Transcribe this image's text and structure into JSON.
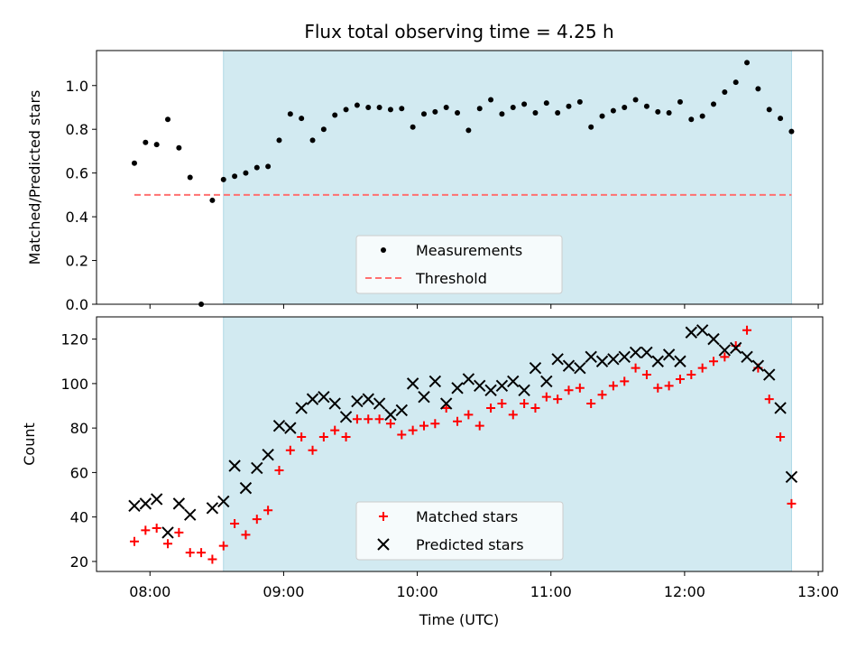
{
  "chart_data": {
    "title": "Flux total observing time = 4.25 h",
    "xlabel": "Time (UTC)",
    "xlim": [
      "07:36",
      "13:02"
    ],
    "x_ticks": [
      "08:00",
      "09:00",
      "10:00",
      "11:00",
      "12:00",
      "13:00"
    ],
    "shaded_interval": [
      "08:33",
      "12:48"
    ],
    "colors": {
      "shade": "#add8e6",
      "threshold": "#ff7070",
      "matched": "#ff0000",
      "predicted": "#000000",
      "measurements": "#000000"
    },
    "panels": [
      {
        "type": "scatter",
        "ylabel": "Matched/Predicted stars",
        "ylim": [
          0,
          1.16
        ],
        "y_ticks": [
          "0.0",
          "0.2",
          "0.4",
          "0.6",
          "0.8",
          "1.0"
        ],
        "legend": {
          "position": "lower center",
          "entries": [
            "Measurements",
            "Threshold"
          ]
        },
        "threshold": {
          "name": "Threshold",
          "value": 0.5,
          "x_range": [
            "07:53",
            "12:48"
          ]
        },
        "series": [
          {
            "name": "Measurements",
            "points": [
              [
                "07:53",
                0.645
              ],
              [
                "07:58",
                0.74
              ],
              [
                "08:03",
                0.73
              ],
              [
                "08:08",
                0.845
              ],
              [
                "08:13",
                0.715
              ],
              [
                "08:18",
                0.58
              ],
              [
                "08:23",
                0.0
              ],
              [
                "08:28",
                0.475
              ],
              [
                "08:33",
                0.57
              ],
              [
                "08:38",
                0.585
              ],
              [
                "08:43",
                0.6
              ],
              [
                "08:48",
                0.625
              ],
              [
                "08:53",
                0.63
              ],
              [
                "08:58",
                0.75
              ],
              [
                "09:03",
                0.87
              ],
              [
                "09:08",
                0.85
              ],
              [
                "09:13",
                0.75
              ],
              [
                "09:18",
                0.8
              ],
              [
                "09:23",
                0.865
              ],
              [
                "09:28",
                0.89
              ],
              [
                "09:33",
                0.91
              ],
              [
                "09:38",
                0.9
              ],
              [
                "09:43",
                0.9
              ],
              [
                "09:48",
                0.89
              ],
              [
                "09:53",
                0.895
              ],
              [
                "09:58",
                0.81
              ],
              [
                "10:03",
                0.87
              ],
              [
                "10:08",
                0.88
              ],
              [
                "10:13",
                0.9
              ],
              [
                "10:18",
                0.875
              ],
              [
                "10:23",
                0.795
              ],
              [
                "10:28",
                0.895
              ],
              [
                "10:33",
                0.935
              ],
              [
                "10:38",
                0.87
              ],
              [
                "10:43",
                0.9
              ],
              [
                "10:48",
                0.915
              ],
              [
                "10:53",
                0.875
              ],
              [
                "10:58",
                0.92
              ],
              [
                "11:03",
                0.875
              ],
              [
                "11:08",
                0.905
              ],
              [
                "11:13",
                0.925
              ],
              [
                "11:18",
                0.81
              ],
              [
                "11:23",
                0.86
              ],
              [
                "11:28",
                0.885
              ],
              [
                "11:33",
                0.9
              ],
              [
                "11:38",
                0.935
              ],
              [
                "11:43",
                0.905
              ],
              [
                "11:48",
                0.88
              ],
              [
                "11:53",
                0.875
              ],
              [
                "11:58",
                0.925
              ],
              [
                "12:03",
                0.845
              ],
              [
                "12:08",
                0.86
              ],
              [
                "12:13",
                0.915
              ],
              [
                "12:18",
                0.97
              ],
              [
                "12:23",
                1.015
              ],
              [
                "12:28",
                1.105
              ],
              [
                "12:33",
                0.985
              ],
              [
                "12:38",
                0.89
              ],
              [
                "12:43",
                0.85
              ],
              [
                "12:48",
                0.79
              ]
            ]
          }
        ]
      },
      {
        "type": "scatter",
        "ylabel": "Count",
        "ylim": [
          15.5,
          130
        ],
        "y_ticks": [
          "20",
          "40",
          "60",
          "80",
          "100",
          "120"
        ],
        "legend": {
          "position": "lower center",
          "entries": [
            "Matched stars",
            "Predicted stars"
          ]
        },
        "series": [
          {
            "name": "Matched stars",
            "points": [
              [
                "07:53",
                29
              ],
              [
                "07:58",
                34
              ],
              [
                "08:03",
                35
              ],
              [
                "08:08",
                28
              ],
              [
                "08:13",
                33
              ],
              [
                "08:18",
                24
              ],
              [
                "08:23",
                24
              ],
              [
                "08:28",
                21
              ],
              [
                "08:33",
                27
              ],
              [
                "08:38",
                37
              ],
              [
                "08:43",
                32
              ],
              [
                "08:48",
                39
              ],
              [
                "08:53",
                43
              ],
              [
                "08:58",
                61
              ],
              [
                "09:03",
                70
              ],
              [
                "09:08",
                76
              ],
              [
                "09:13",
                70
              ],
              [
                "09:18",
                76
              ],
              [
                "09:23",
                79
              ],
              [
                "09:28",
                76
              ],
              [
                "09:33",
                84
              ],
              [
                "09:38",
                84
              ],
              [
                "09:43",
                84
              ],
              [
                "09:48",
                82
              ],
              [
                "09:53",
                77
              ],
              [
                "09:58",
                79
              ],
              [
                "10:03",
                81
              ],
              [
                "10:08",
                82
              ],
              [
                "10:13",
                89
              ],
              [
                "10:18",
                83
              ],
              [
                "10:23",
                86
              ],
              [
                "10:28",
                81
              ],
              [
                "10:33",
                89
              ],
              [
                "10:38",
                91
              ],
              [
                "10:43",
                86
              ],
              [
                "10:48",
                91
              ],
              [
                "10:53",
                89
              ],
              [
                "10:58",
                94
              ],
              [
                "11:03",
                93
              ],
              [
                "11:08",
                97
              ],
              [
                "11:13",
                98
              ],
              [
                "11:18",
                91
              ],
              [
                "11:23",
                95
              ],
              [
                "11:28",
                99
              ],
              [
                "11:33",
                101
              ],
              [
                "11:38",
                107
              ],
              [
                "11:43",
                104
              ],
              [
                "11:48",
                98
              ],
              [
                "11:53",
                99
              ],
              [
                "11:58",
                102
              ],
              [
                "12:03",
                104
              ],
              [
                "12:08",
                107
              ],
              [
                "12:13",
                110
              ],
              [
                "12:18",
                112
              ],
              [
                "12:23",
                117
              ],
              [
                "12:28",
                124
              ],
              [
                "12:33",
                107
              ],
              [
                "12:38",
                93
              ],
              [
                "12:43",
                76
              ],
              [
                "12:48",
                46
              ]
            ]
          },
          {
            "name": "Predicted stars",
            "points": [
              [
                "07:53",
                45
              ],
              [
                "07:58",
                46
              ],
              [
                "08:03",
                48
              ],
              [
                "08:08",
                33
              ],
              [
                "08:13",
                46
              ],
              [
                "08:18",
                41
              ],
              [
                "08:28",
                44
              ],
              [
                "08:33",
                47
              ],
              [
                "08:38",
                63
              ],
              [
                "08:43",
                53
              ],
              [
                "08:48",
                62
              ],
              [
                "08:53",
                68
              ],
              [
                "08:58",
                81
              ],
              [
                "09:03",
                80
              ],
              [
                "09:08",
                89
              ],
              [
                "09:13",
                93
              ],
              [
                "09:18",
                94
              ],
              [
                "09:23",
                91
              ],
              [
                "09:28",
                85
              ],
              [
                "09:33",
                92
              ],
              [
                "09:38",
                93
              ],
              [
                "09:43",
                91
              ],
              [
                "09:48",
                86
              ],
              [
                "09:53",
                88
              ],
              [
                "09:58",
                100
              ],
              [
                "10:03",
                94
              ],
              [
                "10:08",
                101
              ],
              [
                "10:13",
                91
              ],
              [
                "10:18",
                98
              ],
              [
                "10:23",
                102
              ],
              [
                "10:28",
                99
              ],
              [
                "10:33",
                97
              ],
              [
                "10:38",
                99
              ],
              [
                "10:43",
                101
              ],
              [
                "10:48",
                97
              ],
              [
                "10:53",
                107
              ],
              [
                "10:58",
                101
              ],
              [
                "11:03",
                111
              ],
              [
                "11:08",
                108
              ],
              [
                "11:13",
                107
              ],
              [
                "11:18",
                112
              ],
              [
                "11:23",
                110
              ],
              [
                "11:28",
                111
              ],
              [
                "11:33",
                112
              ],
              [
                "11:38",
                114
              ],
              [
                "11:43",
                114
              ],
              [
                "11:48",
                110
              ],
              [
                "11:53",
                113
              ],
              [
                "11:58",
                110
              ],
              [
                "12:03",
                123
              ],
              [
                "12:08",
                124
              ],
              [
                "12:13",
                120
              ],
              [
                "12:18",
                115
              ],
              [
                "12:23",
                116
              ],
              [
                "12:28",
                112
              ],
              [
                "12:33",
                108
              ],
              [
                "12:38",
                104
              ],
              [
                "12:43",
                89
              ],
              [
                "12:48",
                58
              ]
            ]
          }
        ]
      }
    ]
  }
}
